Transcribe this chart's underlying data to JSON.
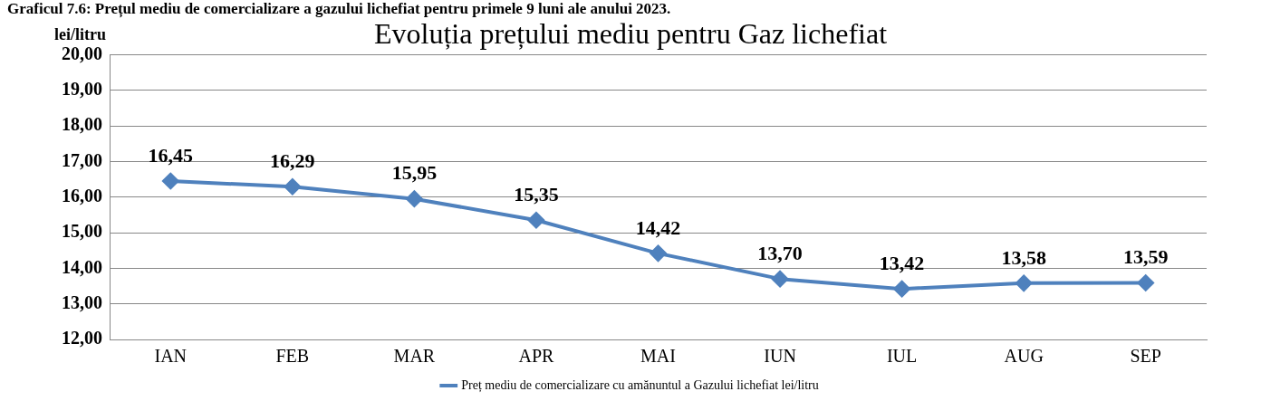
{
  "chart_data": {
    "type": "line",
    "title": "Evoluția prețului mediu pentru Gaz lichefiat",
    "ylabel": "lei/litru",
    "annotations": [
      "Graficul 7.6: Prețul mediu de comercializare a gazului lichefiat pentru primele 9 luni ale anului 2023."
    ],
    "categories": [
      "IAN",
      "FEB",
      "MAR",
      "APR",
      "MAI",
      "IUN",
      "IUL",
      "AUG",
      "SEP"
    ],
    "series": [
      {
        "name": "Preț mediu de comercializare cu amănuntul a Gazului lichefiat lei/litru",
        "color": "#4f81bd",
        "values": [
          16.45,
          16.29,
          15.95,
          15.35,
          14.42,
          13.7,
          13.42,
          13.58,
          13.59
        ],
        "value_labels": [
          "16,45",
          "16,29",
          "15,95",
          "15,35",
          "14,42",
          "13,70",
          "13,42",
          "13,58",
          "13,59"
        ]
      }
    ],
    "ylim": [
      12,
      20
    ],
    "yticks": [
      {
        "value": 12,
        "label": "12,00"
      },
      {
        "value": 13,
        "label": "13,00"
      },
      {
        "value": 14,
        "label": "14,00"
      },
      {
        "value": 15,
        "label": "15,00"
      },
      {
        "value": 16,
        "label": "16,00"
      },
      {
        "value": 17,
        "label": "17,00"
      },
      {
        "value": 18,
        "label": "18,00"
      },
      {
        "value": 19,
        "label": "19,00"
      },
      {
        "value": 20,
        "label": "20,00"
      }
    ],
    "grid": "y",
    "legend": "bottom",
    "marker": "diamond",
    "line_style": "solid"
  }
}
